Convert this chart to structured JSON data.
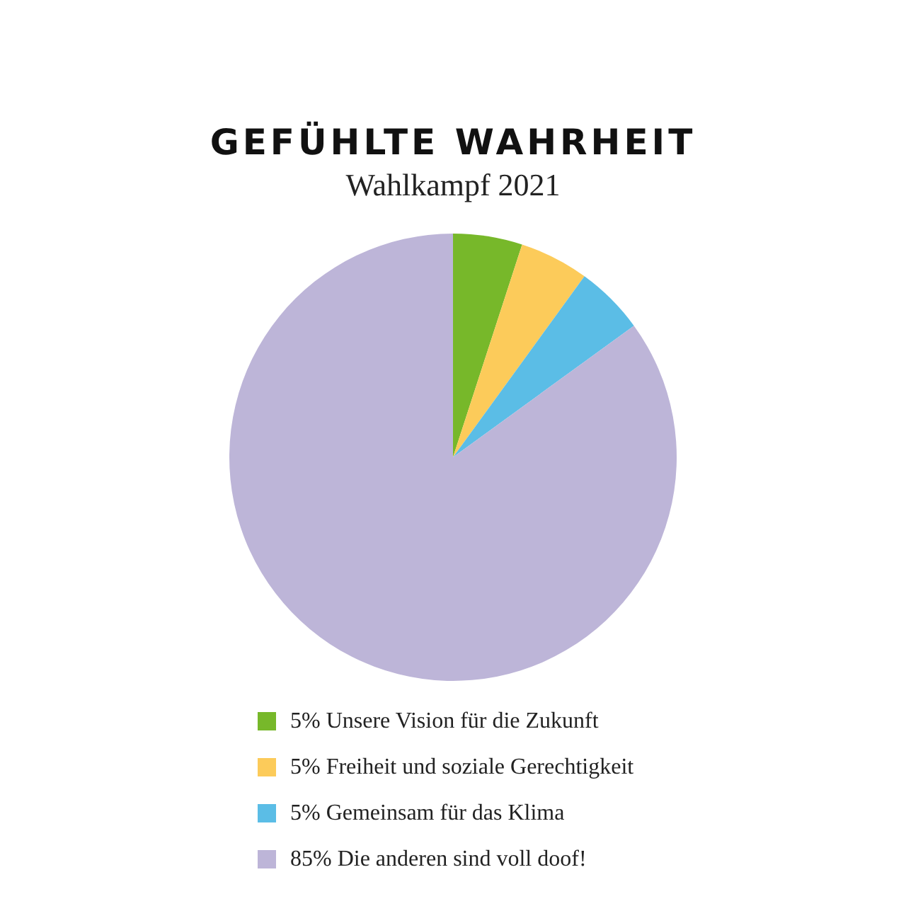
{
  "chart_data": {
    "type": "pie",
    "title": "GEFÜHLTE WAHRHEIT",
    "subtitle": "Wahlkampf 2021",
    "categories": [
      "Unsere Vision für die Zukunft",
      "Freiheit und soziale Gerechtigkeit",
      "Gemeinsam für das Klima",
      "Die anderen sind voll doof!"
    ],
    "values": [
      5,
      5,
      5,
      85
    ],
    "value_labels": [
      "5%",
      "5%",
      "5%",
      "85%"
    ],
    "colors": [
      "#77b82a",
      "#fccb5a",
      "#5bbde6",
      "#bdb5d8"
    ],
    "legend": "bottom"
  }
}
